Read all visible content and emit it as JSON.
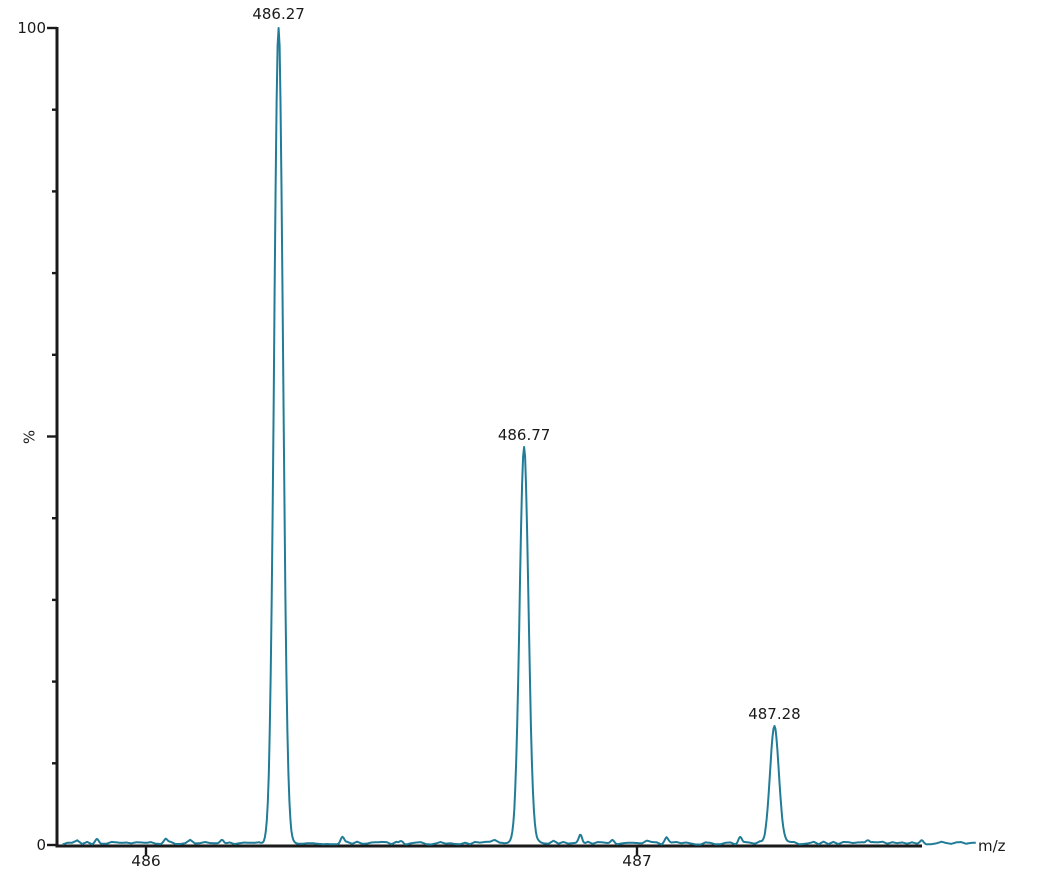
{
  "chart_data": {
    "type": "line",
    "kind": "mass-spectrum",
    "xlabel": "m/z",
    "ylabel": "%",
    "xlim": [
      485.83,
      487.69
    ],
    "ylim": [
      0,
      100
    ],
    "x_axis": {
      "ticks": [
        {
          "value": 486,
          "label": "486"
        },
        {
          "value": 487,
          "label": "487"
        }
      ],
      "end_label": "m/z"
    },
    "y_axis": {
      "top_label": "100",
      "bottom_label": "0",
      "tick_step": 10,
      "major_ticks": [
        0,
        50,
        100
      ]
    },
    "peaks": [
      {
        "mz": 486.27,
        "intensity": 100,
        "label": "486.27"
      },
      {
        "mz": 486.77,
        "intensity": 48.5,
        "label": "486.77"
      },
      {
        "mz": 487.28,
        "intensity": 14.3,
        "label": "487.28"
      }
    ],
    "peak_sigma_mz": 0.009,
    "noise_bumps": [
      {
        "mz": 485.9,
        "intensity": 0.5
      },
      {
        "mz": 486.04,
        "intensity": 0.4
      },
      {
        "mz": 486.155,
        "intensity": 0.45
      },
      {
        "mz": 486.4,
        "intensity": 0.75
      },
      {
        "mz": 486.52,
        "intensity": 0.4
      },
      {
        "mz": 486.885,
        "intensity": 1.1
      },
      {
        "mz": 486.95,
        "intensity": 0.45
      },
      {
        "mz": 487.06,
        "intensity": 0.5
      },
      {
        "mz": 487.21,
        "intensity": 0.9
      },
      {
        "mz": 487.47,
        "intensity": 0.45
      },
      {
        "mz": 487.58,
        "intensity": 0.4
      }
    ],
    "baseline_noise_pct": 0.35,
    "colors": {
      "trace": "#217c97",
      "axis": "#1a1a1a",
      "text": "#1a1a1a",
      "background": "#ffffff"
    }
  }
}
